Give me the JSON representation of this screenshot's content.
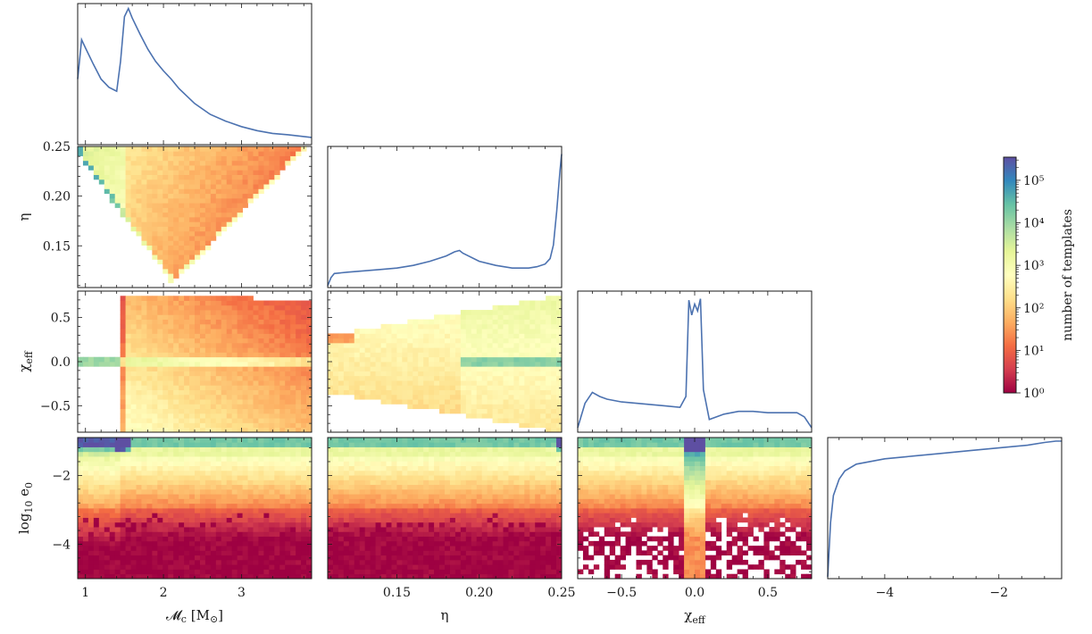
{
  "colors": {
    "line": "#4c72b0",
    "frame": "#1a1a1a",
    "colormap": [
      "#9e0142",
      "#d53e4f",
      "#f46d43",
      "#fdae61",
      "#fee08b",
      "#ffffbf",
      "#e6f598",
      "#abdda4",
      "#66c2a5",
      "#3288bd",
      "#5e4fa2"
    ]
  },
  "chart_data": {
    "type": "heatmap",
    "subtype": "corner-plot",
    "parameters": [
      {
        "key": "mc",
        "label": "𝓜c [M⊙]",
        "range": [
          0.9,
          3.9
        ],
        "ticks": [
          1,
          2,
          3
        ],
        "tick_labels": [
          "1",
          "2",
          "3"
        ]
      },
      {
        "key": "eta",
        "label": "η",
        "range": [
          0.108,
          0.25
        ],
        "ticks": [
          0.15,
          0.2,
          0.25
        ],
        "tick_labels": [
          "0.15",
          "0.20",
          "0.25"
        ]
      },
      {
        "key": "chi",
        "label": "χeff",
        "range": [
          -0.8,
          0.8
        ],
        "ticks": [
          -0.5,
          0.0,
          0.5
        ],
        "tick_labels": [
          "−0.5",
          "0.0",
          "0.5"
        ]
      },
      {
        "key": "loge",
        "label": "log10 e0",
        "range": [
          -5.0,
          -0.9
        ],
        "ticks": [
          -4,
          -2
        ],
        "tick_labels": [
          "−4",
          "−2"
        ]
      }
    ],
    "y_tick_labels": {
      "eta": {
        "ticks": [
          0.15,
          0.2,
          0.25
        ],
        "labels": [
          "0.15",
          "0.20",
          "0.25"
        ]
      },
      "chi": {
        "ticks": [
          -0.5,
          0.0,
          0.5
        ],
        "labels": [
          "−0.5",
          "0.0",
          "0.5"
        ]
      },
      "loge": {
        "ticks": [
          -4,
          -2
        ],
        "labels": [
          "−4",
          "−2"
        ]
      }
    },
    "diagonal": {
      "mc": {
        "x": [
          0.9,
          0.95,
          1.0,
          1.1,
          1.2,
          1.3,
          1.4,
          1.45,
          1.5,
          1.55,
          1.6,
          1.7,
          1.8,
          1.9,
          2.0,
          2.1,
          2.2,
          2.4,
          2.6,
          2.8,
          3.0,
          3.2,
          3.4,
          3.6,
          3.9
        ],
        "y": [
          0.47,
          0.76,
          0.7,
          0.58,
          0.47,
          0.41,
          0.38,
          0.6,
          0.93,
          0.99,
          0.92,
          0.8,
          0.69,
          0.6,
          0.53,
          0.47,
          0.4,
          0.29,
          0.21,
          0.16,
          0.12,
          0.09,
          0.07,
          0.06,
          0.04
        ]
      },
      "eta": {
        "x": [
          0.108,
          0.11,
          0.112,
          0.12,
          0.13,
          0.14,
          0.15,
          0.16,
          0.17,
          0.18,
          0.185,
          0.188,
          0.19,
          0.2,
          0.21,
          0.22,
          0.23,
          0.235,
          0.24,
          0.243,
          0.245,
          0.247,
          0.249,
          0.25
        ],
        "y": [
          0.0,
          0.06,
          0.09,
          0.1,
          0.11,
          0.12,
          0.13,
          0.15,
          0.18,
          0.22,
          0.25,
          0.26,
          0.24,
          0.18,
          0.15,
          0.13,
          0.13,
          0.14,
          0.16,
          0.2,
          0.3,
          0.55,
          0.85,
          0.97
        ]
      },
      "chi": {
        "x": [
          -0.8,
          -0.75,
          -0.7,
          -0.65,
          -0.6,
          -0.5,
          -0.4,
          -0.3,
          -0.2,
          -0.1,
          -0.06,
          -0.04,
          -0.02,
          0.0,
          0.02,
          0.04,
          0.06,
          0.1,
          0.2,
          0.3,
          0.4,
          0.5,
          0.6,
          0.7,
          0.75,
          0.8
        ],
        "y": [
          0.02,
          0.2,
          0.28,
          0.25,
          0.23,
          0.21,
          0.2,
          0.19,
          0.18,
          0.17,
          0.25,
          0.96,
          0.85,
          0.93,
          0.88,
          0.97,
          0.3,
          0.08,
          0.12,
          0.14,
          0.14,
          0.13,
          0.13,
          0.13,
          0.1,
          0.02
        ]
      },
      "loge": {
        "x": [
          -5.0,
          -4.95,
          -4.9,
          -4.8,
          -4.7,
          -4.5,
          -4.0,
          -3.5,
          -3.0,
          -2.5,
          -2.0,
          -1.5,
          -1.2,
          -1.0,
          -0.9
        ],
        "y": [
          0.0,
          0.4,
          0.6,
          0.72,
          0.78,
          0.83,
          0.87,
          0.89,
          0.91,
          0.93,
          0.95,
          0.97,
          0.99,
          1.0,
          1.0
        ]
      }
    },
    "colorbar": {
      "label": "number of templates",
      "scale": "log",
      "range": [
        1,
        350000
      ],
      "ticks": [
        1,
        10,
        100,
        1000,
        10000,
        100000
      ],
      "tick_labels": [
        "10⁰",
        "10¹",
        "10²",
        "10³",
        "10⁴",
        "10⁵"
      ]
    },
    "grid": false,
    "legend": "none"
  }
}
